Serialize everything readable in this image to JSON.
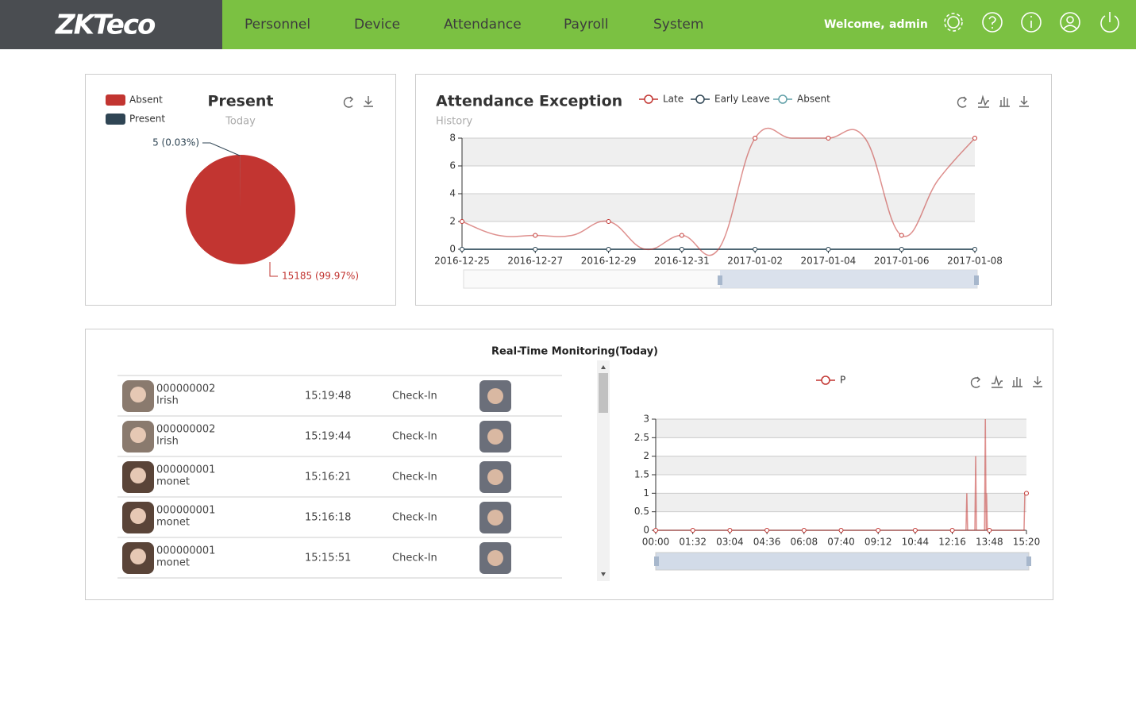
{
  "header": {
    "logo": "ZKTeco",
    "nav": [
      "Personnel",
      "Device",
      "Attendance",
      "Payroll",
      "System"
    ],
    "welcome": "Welcome,",
    "user": "admin"
  },
  "monitoring": {
    "title": "Real-Time Monitoring(Today)",
    "rows": [
      [
        "000000002",
        "Irish",
        "15:19:48",
        "Check-In"
      ],
      [
        "000000002",
        "Irish",
        "15:19:44",
        "Check-In"
      ],
      [
        "000000001",
        "monet",
        "15:16:21",
        "Check-In"
      ],
      [
        "000000001",
        "monet",
        "15:16:18",
        "Check-In"
      ],
      [
        "000000001",
        "monet",
        "15:15:51",
        "Check-In"
      ]
    ]
  },
  "chart_data": [
    {
      "type": "pie",
      "title": "Present",
      "subtitle": "Today",
      "categories": [
        "Absent",
        "Present"
      ],
      "values": [
        15185,
        5
      ],
      "value_labels": [
        "15185 (99.97%)",
        "5 (0.03%)"
      ],
      "colors": [
        "#c23531",
        "#2f4554"
      ]
    },
    {
      "type": "line",
      "title": "Attendance Exception",
      "subtitle": "History",
      "categories": [
        "2016-12-25",
        null,
        "2016-12-27",
        null,
        "2016-12-29",
        null,
        "2016-12-31",
        null,
        "2017-01-02",
        null,
        "2017-01-04",
        null,
        "2017-01-06",
        null,
        "2017-01-08"
      ],
      "series": [
        {
          "name": "Late",
          "color": "#c23531",
          "values": [
            2,
            1,
            1,
            1,
            2,
            0,
            1,
            0,
            8,
            8,
            8,
            8,
            1,
            5,
            8
          ]
        },
        {
          "name": "Early Leave",
          "color": "#2f4554",
          "values": [
            0,
            0,
            0,
            0,
            0,
            0,
            0,
            0,
            0,
            0,
            0,
            0,
            0,
            0,
            0
          ]
        },
        {
          "name": "Absent",
          "color": "#61a0a8",
          "values": [
            0,
            0,
            0,
            0,
            0,
            0,
            0,
            0,
            0,
            0,
            0,
            0,
            0,
            0,
            0
          ]
        }
      ],
      "ylim": [
        0,
        8
      ],
      "yticks": [
        0,
        2,
        4,
        6,
        8
      ],
      "grid": true
    },
    {
      "type": "line",
      "x": [
        0,
        92,
        184,
        276,
        368,
        460,
        552,
        644,
        736,
        770,
        772,
        774,
        792,
        794,
        796,
        816,
        818,
        820,
        821,
        823,
        828,
        914,
        916,
        920
      ],
      "series": [
        {
          "name": "P",
          "color": "#c23531",
          "values": [
            0,
            0,
            0,
            0,
            0,
            0,
            0,
            0,
            0,
            0,
            1,
            0,
            0,
            2,
            0,
            0,
            3,
            0,
            1,
            0,
            0,
            0,
            1,
            1
          ]
        }
      ],
      "xlim": [
        0,
        920
      ],
      "xticks": [
        {
          "value": 0,
          "label": "00:00"
        },
        {
          "value": 92,
          "label": "01:32"
        },
        {
          "value": 184,
          "label": "03:04"
        },
        {
          "value": 276,
          "label": "04:36"
        },
        {
          "value": 368,
          "label": "06:08"
        },
        {
          "value": 460,
          "label": "07:40"
        },
        {
          "value": 552,
          "label": "09:12"
        },
        {
          "value": 644,
          "label": "10:44"
        },
        {
          "value": 736,
          "label": "12:16"
        },
        {
          "value": 828,
          "label": "13:48"
        },
        {
          "value": 920,
          "label": "15:20"
        }
      ],
      "ylim": [
        0,
        3
      ],
      "yticks": [
        0,
        0.5,
        1,
        1.5,
        2,
        2.5,
        3
      ],
      "grid": true
    }
  ]
}
